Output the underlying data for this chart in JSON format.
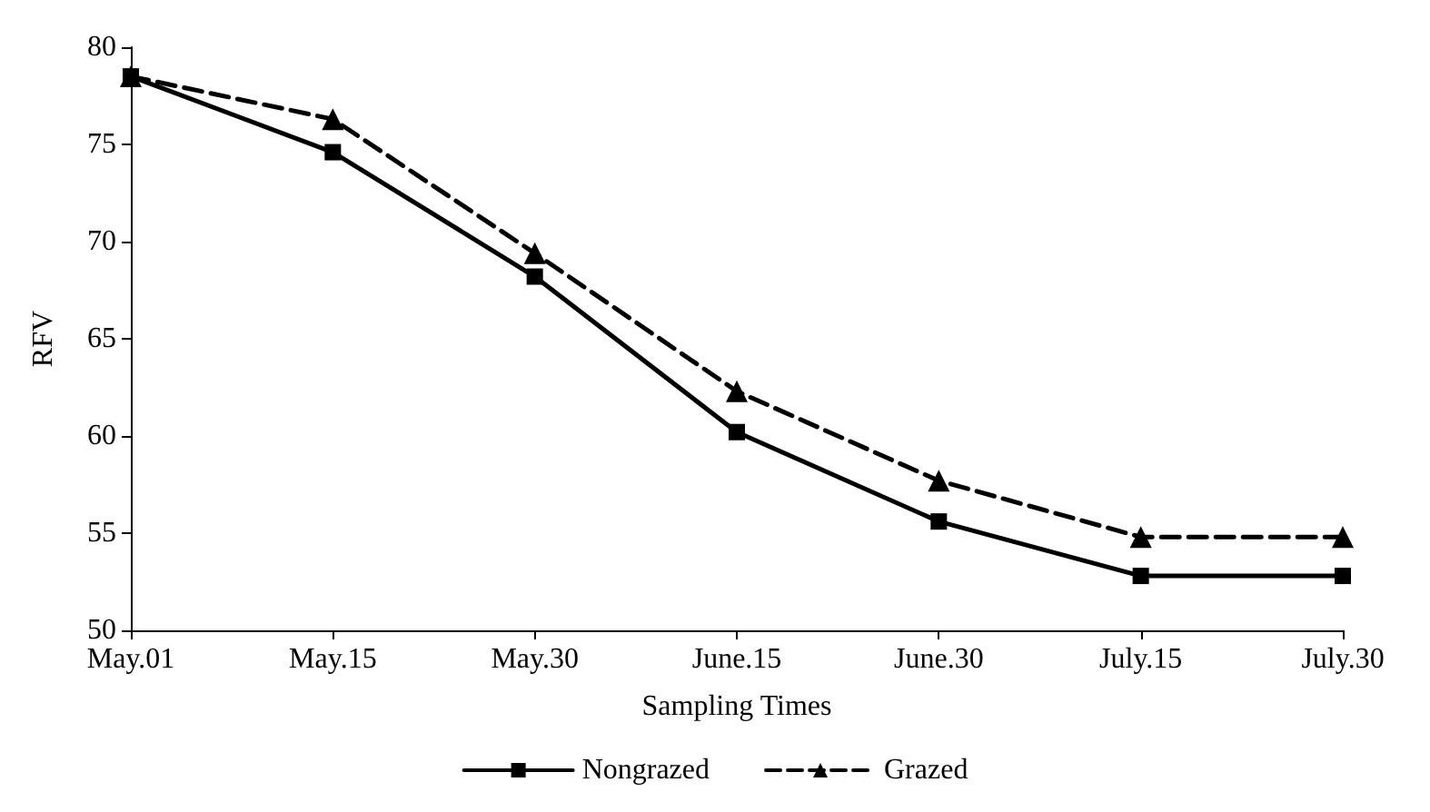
{
  "chart_data": {
    "type": "line",
    "xlabel": "Sampling Times",
    "ylabel": "RFV",
    "categories": [
      "May.01",
      "May.15",
      "May.30",
      "June.15",
      "June.30",
      "July.15",
      "July.30"
    ],
    "series": [
      {
        "name": "Nongrazed",
        "color": "#000000",
        "marker": "square",
        "line_style": "solid",
        "values": [
          78.5,
          74.6,
          68.2,
          60.2,
          55.6,
          52.8,
          52.8
        ]
      },
      {
        "name": "Grazed",
        "color": "#000000",
        "marker": "triangle",
        "line_style": "dashed",
        "values": [
          78.5,
          76.3,
          69.4,
          62.3,
          57.7,
          54.8,
          54.8
        ]
      }
    ],
    "ylim": [
      50,
      80
    ],
    "yticks": [
      50,
      55,
      60,
      65,
      70,
      75,
      80
    ],
    "grid": false,
    "legend": "bottom"
  }
}
